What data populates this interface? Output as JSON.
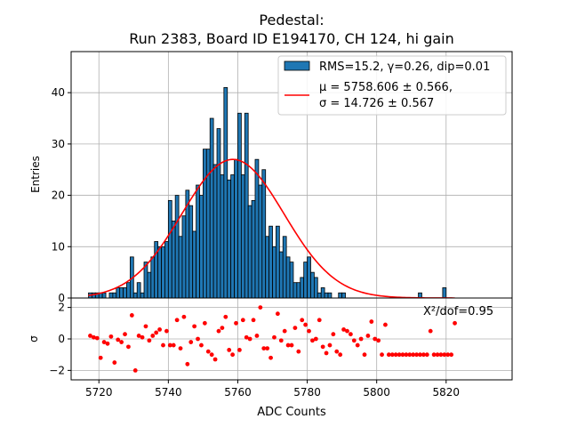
{
  "chart_data": [
    {
      "type": "bar",
      "title_line1": "Pedestal:",
      "title_line2": "Run 2383, Board ID E194170, CH 124, hi gain",
      "ylabel": "Entries",
      "xlim": [
        5712,
        5839
      ],
      "ylim": [
        0,
        48
      ],
      "yticks": [
        0,
        10,
        20,
        30,
        40
      ],
      "grid": true,
      "bin_width": 1,
      "bin_start": 5717,
      "hist_values": [
        1,
        1,
        1,
        1,
        1,
        0,
        1,
        1,
        2,
        2,
        2,
        3,
        8,
        1,
        3,
        1,
        7,
        5,
        8,
        11,
        10,
        10,
        11,
        19,
        15,
        20,
        12,
        16,
        21,
        18,
        13,
        22,
        20,
        29,
        29,
        35,
        26,
        33,
        24,
        41,
        23,
        24,
        27,
        36,
        24,
        36,
        18,
        19,
        27,
        22,
        25,
        12,
        14,
        10,
        14,
        9,
        12,
        8,
        7,
        3,
        3,
        4,
        7,
        8,
        5,
        4,
        1,
        2,
        1,
        1,
        0,
        0,
        1,
        1,
        0,
        0,
        0,
        0,
        0,
        0,
        0,
        0,
        0,
        0,
        0,
        0,
        0,
        0,
        0,
        0,
        0,
        0,
        0,
        0,
        0,
        1,
        0,
        0,
        0,
        0,
        0,
        0,
        2
      ],
      "fit_curve": {
        "mu": 5758.606,
        "sigma": 14.726,
        "amplitude": 27,
        "color": "#ff0000"
      },
      "bar_color": "#1f77b4",
      "legend": {
        "position": "top-right",
        "hist_label": "RMS=15.2, γ=0.26, dip=0.01",
        "fit_line1": "μ = 5758.606 ± 0.566,",
        "fit_line2": "σ = 14.726 ± 0.567"
      }
    },
    {
      "type": "scatter",
      "xlabel": "ADC Counts",
      "ylabel": "σ",
      "xlim": [
        5712,
        5839
      ],
      "ylim": [
        -2.6,
        2.6
      ],
      "yticks": [
        -2,
        0,
        2
      ],
      "xticks": [
        5720,
        5740,
        5760,
        5780,
        5800,
        5820
      ],
      "grid": true,
      "point_color": "#ff0000",
      "annotation": "X²/dof=0.95",
      "points": [
        [
          5717.5,
          0.2
        ],
        [
          5718.5,
          0.1
        ],
        [
          5719.5,
          0.05
        ],
        [
          5720.5,
          -1.2
        ],
        [
          5721.5,
          -0.2
        ],
        [
          5722.5,
          -0.3
        ],
        [
          5723.5,
          0.15
        ],
        [
          5724.5,
          -1.5
        ],
        [
          5725.5,
          -0.05
        ],
        [
          5726.5,
          -0.2
        ],
        [
          5727.5,
          0.3
        ],
        [
          5728.5,
          -0.5
        ],
        [
          5729.5,
          1.5
        ],
        [
          5730.5,
          -2.0
        ],
        [
          5731.5,
          0.2
        ],
        [
          5732.5,
          0.1
        ],
        [
          5733.5,
          0.8
        ],
        [
          5734.5,
          -0.1
        ],
        [
          5735.5,
          0.2
        ],
        [
          5736.5,
          0.4
        ],
        [
          5737.5,
          0.6
        ],
        [
          5738.5,
          -0.4
        ],
        [
          5739.5,
          0.5
        ],
        [
          5740.5,
          -0.4
        ],
        [
          5741.5,
          -0.4
        ],
        [
          5742.5,
          1.2
        ],
        [
          5743.5,
          -0.6
        ],
        [
          5744.5,
          1.4
        ],
        [
          5745.5,
          -1.6
        ],
        [
          5746.5,
          -0.2
        ],
        [
          5747.5,
          0.8
        ],
        [
          5748.5,
          0.0
        ],
        [
          5749.5,
          -0.4
        ],
        [
          5750.5,
          1.0
        ],
        [
          5751.5,
          -0.8
        ],
        [
          5752.5,
          -1.0
        ],
        [
          5753.5,
          -1.3
        ],
        [
          5754.5,
          0.5
        ],
        [
          5755.5,
          0.7
        ],
        [
          5756.5,
          1.4
        ],
        [
          5757.5,
          -0.7
        ],
        [
          5758.5,
          -1.0
        ],
        [
          5759.5,
          1.0
        ],
        [
          5760.5,
          -0.7
        ],
        [
          5761.5,
          1.2
        ],
        [
          5762.5,
          0.1
        ],
        [
          5763.5,
          0.0
        ],
        [
          5764.5,
          1.2
        ],
        [
          5765.5,
          0.2
        ],
        [
          5766.5,
          2.0
        ],
        [
          5767.5,
          -0.6
        ],
        [
          5768.5,
          -0.6
        ],
        [
          5769.5,
          -1.2
        ],
        [
          5770.5,
          0.1
        ],
        [
          5771.5,
          1.6
        ],
        [
          5772.5,
          -0.1
        ],
        [
          5773.5,
          0.5
        ],
        [
          5774.5,
          -0.4
        ],
        [
          5775.5,
          -0.4
        ],
        [
          5776.5,
          0.7
        ],
        [
          5777.5,
          -0.8
        ],
        [
          5778.5,
          1.2
        ],
        [
          5779.5,
          0.9
        ],
        [
          5780.5,
          0.5
        ],
        [
          5781.5,
          -0.1
        ],
        [
          5782.5,
          0.0
        ],
        [
          5783.5,
          1.2
        ],
        [
          5784.5,
          -0.5
        ],
        [
          5785.5,
          -0.9
        ],
        [
          5786.5,
          -0.4
        ],
        [
          5787.5,
          0.3
        ],
        [
          5788.5,
          -0.8
        ],
        [
          5789.5,
          -1.0
        ],
        [
          5790.5,
          0.6
        ],
        [
          5791.5,
          0.5
        ],
        [
          5792.5,
          0.3
        ],
        [
          5793.5,
          -0.1
        ],
        [
          5794.5,
          -0.4
        ],
        [
          5795.5,
          0.0
        ],
        [
          5796.5,
          -1.0
        ],
        [
          5797.5,
          0.2
        ],
        [
          5798.5,
          1.1
        ],
        [
          5799.5,
          0.0
        ],
        [
          5800.5,
          -0.1
        ],
        [
          5801.5,
          -1.0
        ],
        [
          5802.5,
          0.9
        ],
        [
          5803.5,
          -1.0
        ],
        [
          5804.5,
          -1.0
        ],
        [
          5805.5,
          -1.0
        ],
        [
          5806.5,
          -1.0
        ],
        [
          5807.5,
          -1.0
        ],
        [
          5808.5,
          -1.0
        ],
        [
          5809.5,
          -1.0
        ],
        [
          5810.5,
          -1.0
        ],
        [
          5811.5,
          -1.0
        ],
        [
          5812.5,
          -1.0
        ],
        [
          5813.5,
          -1.0
        ],
        [
          5814.5,
          -1.0
        ],
        [
          5815.5,
          0.5
        ],
        [
          5816.5,
          -1.0
        ],
        [
          5817.5,
          -1.0
        ],
        [
          5818.5,
          -1.0
        ],
        [
          5819.5,
          -1.0
        ],
        [
          5820.5,
          -1.0
        ],
        [
          5821.5,
          -1.0
        ],
        [
          5822.5,
          1.0
        ]
      ]
    }
  ]
}
